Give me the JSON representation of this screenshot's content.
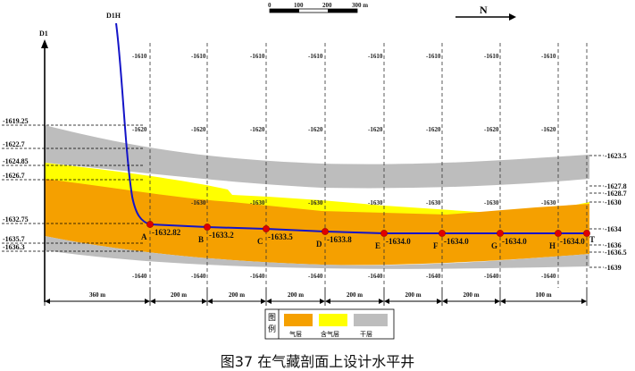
{
  "caption": "图37 在气藏剖面上设计水平井",
  "well_name": "D1H",
  "well_top_label": "D1",
  "north_label": "N",
  "scale_bar": {
    "labels": [
      "0",
      "100",
      "200",
      "300 m"
    ]
  },
  "grid_depth_labels": [
    "-1610",
    "-1620",
    "-1630",
    "-1640"
  ],
  "points": [
    {
      "letter": "A",
      "depth": "-1632.82"
    },
    {
      "letter": "B",
      "depth": "-1633.2"
    },
    {
      "letter": "C",
      "depth": "-1633.5"
    },
    {
      "letter": "D",
      "depth": "-1633.8"
    },
    {
      "letter": "E",
      "depth": "-1634.0"
    },
    {
      "letter": "F",
      "depth": "-1634.0"
    },
    {
      "letter": "G",
      "depth": "-1634.0"
    },
    {
      "letter": "H",
      "depth": "-1634.0"
    },
    {
      "letter": "T",
      "depth": ""
    }
  ],
  "left_depths": [
    "-1619.25",
    "-1622.7",
    "-1624.85",
    "-1626.7",
    "-1632.75",
    "-1635.7",
    "-1636.3"
  ],
  "right_depths": [
    "-1623.5",
    "-1627.8",
    "-1628.7",
    "-1630",
    "-1634",
    "-1636",
    "-1636.5",
    "-1639"
  ],
  "distances": [
    "360 m",
    "200 m",
    "200 m",
    "200 m",
    "200 m",
    "200 m",
    "200 m",
    "100 m"
  ],
  "legend": {
    "title": "图例",
    "items": [
      {
        "label": "气层",
        "color": "#f5a000"
      },
      {
        "label": "含气层",
        "color": "#ffff00"
      },
      {
        "label": "干层",
        "color": "#bdbdbd"
      }
    ]
  },
  "colors": {
    "gas": "#f5a000",
    "gas_bearing": "#ffff00",
    "dry": "#bdbdbd",
    "well": "#1414c8",
    "point": "#e00000"
  }
}
